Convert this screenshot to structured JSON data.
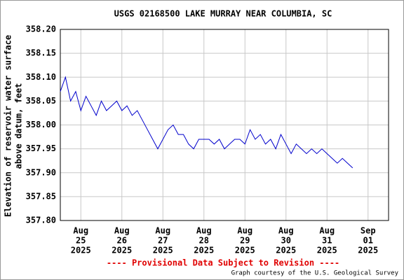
{
  "chart_data": {
    "type": "line",
    "title": "USGS 02168500 LAKE MURRAY NEAR COLUMBIA, SC",
    "y_label": [
      "Elevation of reservoir water surface",
      "above datum, feet"
    ],
    "footer": "---- Provisional Data Subject to Revision ----",
    "credit": "Graph courtesy of the U.S. Geological Survey",
    "x": [
      "2025-08-24T12:00",
      "2025-08-24T15:00",
      "2025-08-24T18:00",
      "2025-08-24T21:00",
      "2025-08-25T00:00",
      "2025-08-25T03:00",
      "2025-08-25T06:00",
      "2025-08-25T09:00",
      "2025-08-25T12:00",
      "2025-08-25T15:00",
      "2025-08-25T18:00",
      "2025-08-25T21:00",
      "2025-08-26T00:00",
      "2025-08-26T03:00",
      "2025-08-26T06:00",
      "2025-08-26T09:00",
      "2025-08-26T12:00",
      "2025-08-26T15:00",
      "2025-08-26T18:00",
      "2025-08-26T21:00",
      "2025-08-27T00:00",
      "2025-08-27T03:00",
      "2025-08-27T06:00",
      "2025-08-27T09:00",
      "2025-08-27T12:00",
      "2025-08-27T15:00",
      "2025-08-27T18:00",
      "2025-08-27T21:00",
      "2025-08-28T00:00",
      "2025-08-28T03:00",
      "2025-08-28T06:00",
      "2025-08-28T09:00",
      "2025-08-28T12:00",
      "2025-08-28T15:00",
      "2025-08-28T18:00",
      "2025-08-28T21:00",
      "2025-08-29T00:00",
      "2025-08-29T03:00",
      "2025-08-29T06:00",
      "2025-08-29T09:00",
      "2025-08-29T12:00",
      "2025-08-29T15:00",
      "2025-08-29T18:00",
      "2025-08-29T21:00",
      "2025-08-30T00:00",
      "2025-08-30T03:00",
      "2025-08-30T06:00",
      "2025-08-30T09:00",
      "2025-08-30T12:00",
      "2025-08-30T15:00",
      "2025-08-30T18:00",
      "2025-08-30T21:00",
      "2025-08-31T00:00",
      "2025-08-31T03:00",
      "2025-08-31T06:00",
      "2025-08-31T09:00",
      "2025-08-31T12:00",
      "2025-08-31T15:00"
    ],
    "series": [
      {
        "color": "#0000cc",
        "values": [
          358.07,
          358.1,
          358.05,
          358.07,
          358.03,
          358.06,
          358.04,
          358.02,
          358.05,
          358.03,
          358.04,
          358.05,
          358.03,
          358.04,
          358.02,
          358.03,
          358.01,
          357.99,
          357.97,
          357.95,
          357.97,
          357.99,
          358.0,
          357.98,
          357.98,
          357.96,
          357.95,
          357.97,
          357.97,
          357.97,
          357.96,
          357.97,
          357.95,
          357.96,
          357.97,
          357.97,
          357.96,
          357.99,
          357.97,
          357.98,
          357.96,
          357.97,
          357.95,
          357.98,
          357.96,
          357.94,
          357.96,
          357.95,
          357.94,
          357.95,
          357.94,
          357.95,
          357.94,
          357.93,
          357.92,
          357.93,
          357.92,
          357.91
        ]
      }
    ],
    "xlim": [
      "2025-08-24T12:00",
      "2025-09-01T12:00"
    ],
    "xticks": [
      {
        "value": "2025-08-25T00:00",
        "label": [
          "Aug",
          "25",
          "2025"
        ]
      },
      {
        "value": "2025-08-26T00:00",
        "label": [
          "Aug",
          "26",
          "2025"
        ]
      },
      {
        "value": "2025-08-27T00:00",
        "label": [
          "Aug",
          "27",
          "2025"
        ]
      },
      {
        "value": "2025-08-28T00:00",
        "label": [
          "Aug",
          "28",
          "2025"
        ]
      },
      {
        "value": "2025-08-29T00:00",
        "label": [
          "Aug",
          "29",
          "2025"
        ]
      },
      {
        "value": "2025-08-30T00:00",
        "label": [
          "Aug",
          "30",
          "2025"
        ]
      },
      {
        "value": "2025-08-31T00:00",
        "label": [
          "Aug",
          "31",
          "2025"
        ]
      },
      {
        "value": "2025-09-01T00:00",
        "label": [
          "Sep",
          "01",
          "2025"
        ]
      }
    ],
    "ylim": [
      357.8,
      358.2
    ],
    "yticks": [
      {
        "value": 357.8,
        "label": "357.80"
      },
      {
        "value": 357.85,
        "label": "357.85"
      },
      {
        "value": 357.9,
        "label": "357.90"
      },
      {
        "value": 357.95,
        "label": "357.95"
      },
      {
        "value": 358.0,
        "label": "358.00"
      },
      {
        "value": 358.05,
        "label": "358.05"
      },
      {
        "value": 358.1,
        "label": "358.10"
      },
      {
        "value": 358.15,
        "label": "358.15"
      },
      {
        "value": 358.2,
        "label": "358.20"
      }
    ],
    "grid": true
  }
}
